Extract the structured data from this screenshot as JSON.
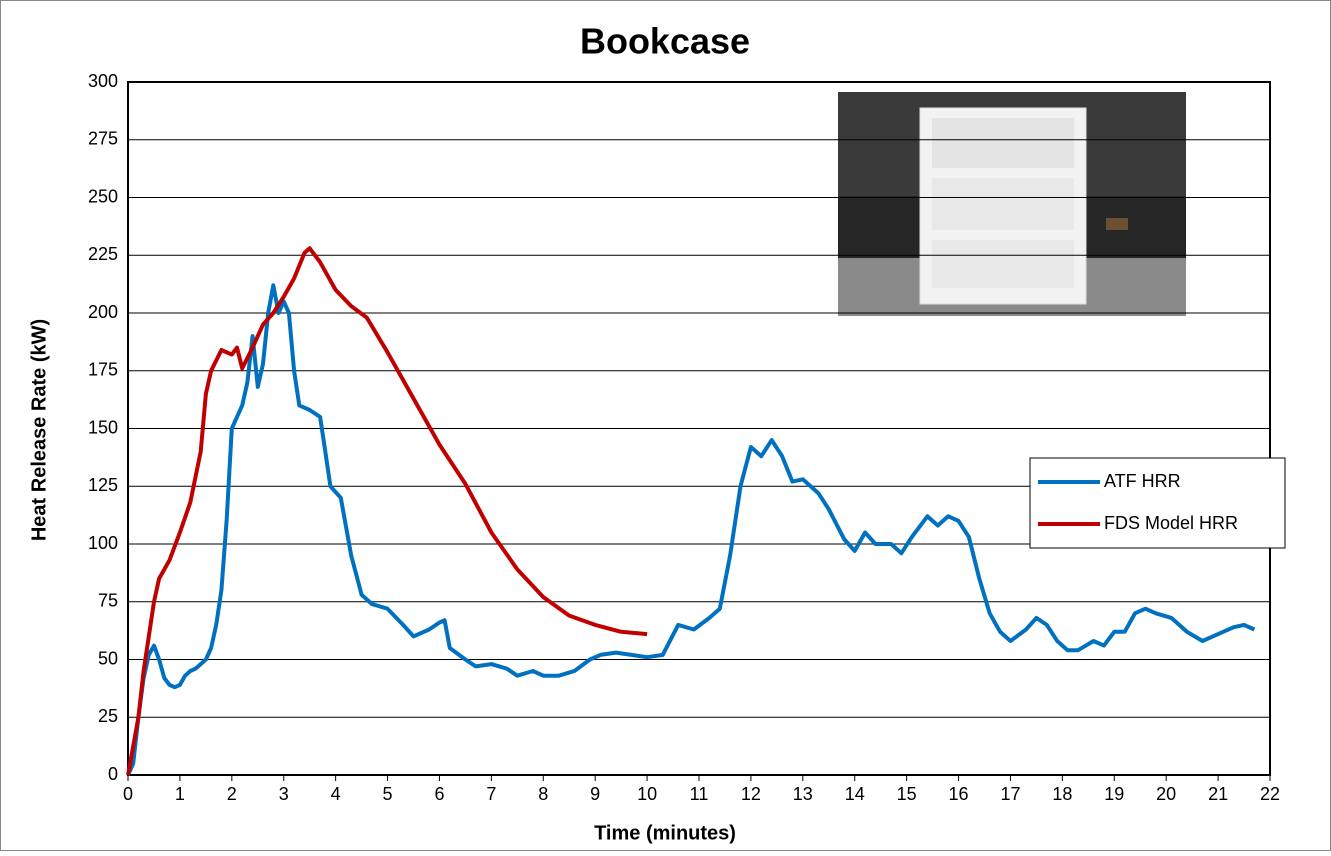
{
  "chart_data": {
    "type": "line",
    "title": "Bookcase",
    "x_label": "Time (minutes)",
    "y_label": "Heat Release Rate (kW)",
    "xlim": [
      0,
      22
    ],
    "xticks": [
      0,
      1,
      2,
      3,
      4,
      5,
      6,
      7,
      8,
      9,
      10,
      11,
      12,
      13,
      14,
      15,
      16,
      17,
      18,
      19,
      20,
      21,
      22
    ],
    "ylim": [
      0,
      300
    ],
    "yticks": [
      0,
      25,
      50,
      75,
      100,
      125,
      150,
      175,
      200,
      225,
      250,
      275,
      300
    ],
    "grid": true,
    "legend": "right",
    "series": [
      {
        "name": "ATF HRR",
        "color": "#0070c0",
        "x": [
          0,
          0.1,
          0.2,
          0.3,
          0.4,
          0.5,
          0.6,
          0.7,
          0.8,
          0.9,
          1.0,
          1.1,
          1.2,
          1.3,
          1.4,
          1.5,
          1.6,
          1.7,
          1.8,
          1.9,
          2.0,
          2.1,
          2.2,
          2.3,
          2.4,
          2.5,
          2.6,
          2.7,
          2.8,
          2.9,
          3.0,
          3.1,
          3.2,
          3.3,
          3.5,
          3.7,
          3.8,
          3.9,
          4.1,
          4.3,
          4.5,
          4.7,
          5.0,
          5.3,
          5.5,
          5.8,
          6.0,
          6.1,
          6.2,
          6.5,
          6.7,
          7.0,
          7.3,
          7.5,
          7.8,
          8.0,
          8.3,
          8.6,
          8.9,
          9.1,
          9.4,
          9.7,
          10.0,
          10.3,
          10.6,
          10.9,
          11.2,
          11.4,
          11.6,
          11.8,
          12.0,
          12.2,
          12.4,
          12.6,
          12.8,
          13.0,
          13.3,
          13.5,
          13.8,
          14.0,
          14.2,
          14.4,
          14.7,
          14.9,
          15.1,
          15.4,
          15.6,
          15.8,
          16.0,
          16.2,
          16.4,
          16.6,
          16.8,
          17.0,
          17.3,
          17.5,
          17.7,
          17.9,
          18.1,
          18.3,
          18.6,
          18.8,
          19.0,
          19.2,
          19.4,
          19.6,
          19.8,
          20.1,
          20.4,
          20.7,
          21.0,
          21.3,
          21.5,
          21.7
        ],
        "values": [
          0,
          5,
          25,
          42,
          52,
          56,
          50,
          42,
          39,
          38,
          39,
          43,
          45,
          46,
          48,
          50,
          55,
          65,
          80,
          110,
          150,
          155,
          160,
          170,
          190,
          168,
          178,
          200,
          212,
          200,
          205,
          200,
          175,
          160,
          158,
          155,
          140,
          125,
          120,
          95,
          78,
          74,
          72,
          65,
          60,
          63,
          66,
          67,
          55,
          50,
          47,
          48,
          46,
          43,
          45,
          43,
          43,
          45,
          50,
          52,
          53,
          52,
          51,
          52,
          65,
          63,
          68,
          72,
          95,
          125,
          142,
          138,
          145,
          138,
          127,
          128,
          122,
          115,
          102,
          97,
          105,
          100,
          100,
          96,
          103,
          112,
          108,
          112,
          110,
          103,
          85,
          70,
          62,
          58,
          63,
          68,
          65,
          58,
          54,
          54,
          58,
          56,
          62,
          62,
          70,
          72,
          70,
          68,
          62,
          58,
          61,
          64,
          65,
          63
        ]
      },
      {
        "name": "FDS Model HRR",
        "color": "#c00000",
        "x": [
          0,
          0.2,
          0.3,
          0.4,
          0.5,
          0.6,
          0.8,
          1.0,
          1.2,
          1.4,
          1.5,
          1.6,
          1.8,
          2.0,
          2.1,
          2.2,
          2.4,
          2.6,
          2.8,
          3.0,
          3.2,
          3.4,
          3.5,
          3.7,
          4.0,
          4.3,
          4.6,
          5.0,
          5.5,
          6.0,
          6.5,
          7.0,
          7.5,
          8.0,
          8.5,
          9.0,
          9.5,
          10.0
        ],
        "values": [
          0,
          25,
          45,
          60,
          75,
          85,
          93,
          105,
          118,
          140,
          165,
          175,
          184,
          182,
          185,
          176,
          185,
          195,
          200,
          207,
          215,
          226,
          228,
          222,
          210,
          203,
          198,
          183,
          163,
          143,
          126,
          105,
          89,
          77,
          69,
          65,
          62,
          61
        ]
      }
    ]
  }
}
